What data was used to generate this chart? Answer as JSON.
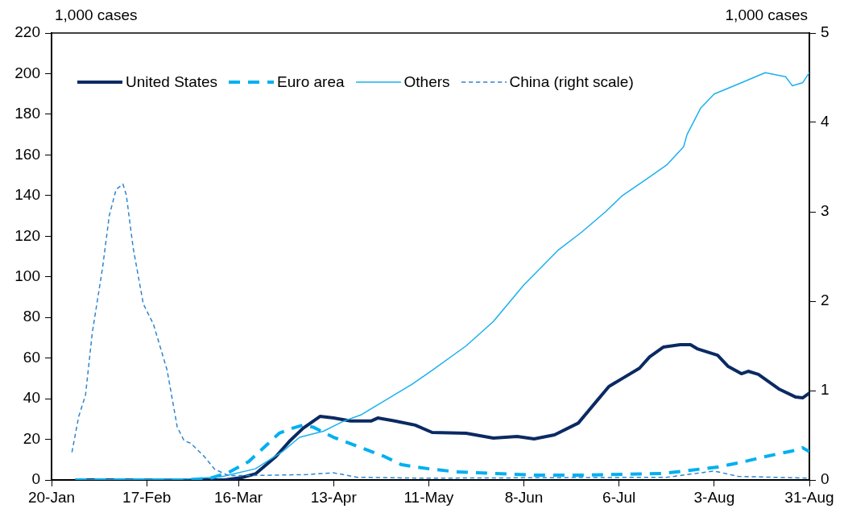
{
  "chart_data": {
    "type": "line",
    "ylabel": "1,000 cases",
    "y2label": "1,000 cases",
    "xlim": [
      "--01-20",
      "--08-31"
    ],
    "xticks": [
      {
        "value": "--01-20",
        "label": "20-Jan"
      },
      {
        "value": "--02-17",
        "label": "17-Feb"
      },
      {
        "value": "--03-16",
        "label": "16-Mar"
      },
      {
        "value": "--04-13",
        "label": "13-Apr"
      },
      {
        "value": "--05-11",
        "label": "11-May"
      },
      {
        "value": "--06-08",
        "label": "8-Jun"
      },
      {
        "value": "--07-06",
        "label": "6-Jul"
      },
      {
        "value": "--08-03",
        "label": "3-Aug"
      },
      {
        "value": "--08-31",
        "label": "31-Aug"
      }
    ],
    "ylim": [
      0,
      220
    ],
    "yticks": [
      0,
      20,
      40,
      60,
      80,
      100,
      120,
      140,
      160,
      180,
      200,
      220
    ],
    "y2lim": [
      0,
      5
    ],
    "y2ticks": [
      0,
      1,
      2,
      3,
      4,
      5
    ],
    "legend": "top left",
    "marker": "none",
    "series": [
      {
        "name": "United States",
        "color": "#0b2a63",
        "line_style": "solid",
        "x": [
          "--01-27",
          "--03-12",
          "--03-17",
          "--03-21",
          "--03-27",
          "--03-31",
          "--04-04",
          "--04-09",
          "--04-13",
          "--04-18",
          "--04-24",
          "--04-26",
          "--05-01",
          "--05-07",
          "--05-12",
          "--05-22",
          "--05-30",
          "--06-06",
          "--06-11",
          "--06-17",
          "--06-24",
          "--06-29",
          "--07-03",
          "--07-07",
          "--07-12",
          "--07-15",
          "--07-19",
          "--07-24",
          "--07-27",
          "--07-29",
          "--08-04",
          "--08-07",
          "--08-11",
          "--08-13",
          "--08-16",
          "--08-22",
          "--08-27",
          "--08-29",
          "--08-31"
        ],
        "values": [
          0,
          0,
          1.2,
          3,
          11.5,
          19,
          25.4,
          31.3,
          30.5,
          29,
          29,
          30.5,
          29,
          27,
          23.4,
          23,
          20.6,
          21.4,
          20.2,
          22.2,
          28,
          38,
          46,
          50,
          55,
          60.6,
          65.4,
          66.6,
          66.6,
          64.6,
          61.4,
          56,
          52.3,
          53.5,
          52,
          44.8,
          40.8,
          40.4,
          42.8
        ]
      },
      {
        "name": "Euro area",
        "color": "#00b0f0",
        "line_style": "dashed",
        "x": [
          "--01-27",
          "--03-01",
          "--03-08",
          "--03-13",
          "--03-19",
          "--03-28",
          "--04-01",
          "--04-04",
          "--04-07",
          "--04-13",
          "--04-20",
          "--04-28",
          "--05-03",
          "--05-11",
          "--05-19",
          "--05-30",
          "--06-11",
          "--06-25",
          "--07-19",
          "--07-27",
          "--08-04",
          "--08-11",
          "--08-18",
          "--08-26",
          "--08-29",
          "--08-31"
        ],
        "values": [
          0,
          0,
          1,
          3.6,
          9,
          23,
          25.5,
          27,
          26,
          21,
          16.6,
          11.5,
          7.5,
          5.5,
          4,
          3.2,
          2.4,
          2.4,
          3.2,
          4.8,
          6.3,
          8.7,
          11.5,
          14.3,
          15.9,
          14
        ]
      },
      {
        "name": "Others",
        "color": "#1ab0ee",
        "line_style": "solid",
        "x": [
          "--01-27",
          "--03-01",
          "--03-11",
          "--03-21",
          "--03-29",
          "--04-03",
          "--04-10",
          "--04-16",
          "--04-21",
          "--04-28",
          "--05-06",
          "--05-12",
          "--05-22",
          "--05-30",
          "--06-08",
          "--06-18",
          "--06-25",
          "--07-02",
          "--07-07",
          "--07-14",
          "--07-20",
          "--07-25",
          "--07-26",
          "--07-30",
          "--08-03",
          "--08-11",
          "--08-18",
          "--08-24",
          "--08-26",
          "--08-29",
          "--08-31"
        ],
        "values": [
          0,
          0.5,
          1.6,
          5.5,
          14,
          21,
          24,
          29,
          32,
          39,
          47,
          54,
          66,
          78,
          96,
          113,
          122,
          132,
          140,
          148,
          155,
          164,
          170,
          183,
          190,
          195.5,
          200.5,
          198.5,
          194,
          195.5,
          200.5
        ]
      },
      {
        "name": "China (right scale)",
        "color": "#2e86d0",
        "line_style": "dashed",
        "axis": "y2",
        "x": [
          "--01-26",
          "--01-28",
          "--01-30",
          "--02-01",
          "--02-04",
          "--02-06",
          "--02-08",
          "--02-10",
          "--02-11",
          "--02-13",
          "--02-16",
          "--02-19",
          "--02-23",
          "--02-26",
          "--02-28",
          "--03-02",
          "--03-06",
          "--03-09",
          "--03-13",
          "--03-20",
          "--04-05",
          "--04-13",
          "--04-20",
          "--05-10",
          "--07-20",
          "--08-03",
          "--08-10",
          "--08-31"
        ],
        "values": [
          0.31,
          0.71,
          0.95,
          1.65,
          2.37,
          2.96,
          3.25,
          3.31,
          3.19,
          2.6,
          1.97,
          1.74,
          1.23,
          0.59,
          0.44,
          0.41,
          0.26,
          0.12,
          0.05,
          0.05,
          0.06,
          0.08,
          0.03,
          0.02,
          0.03,
          0.1,
          0.04,
          0.02
        ]
      }
    ]
  }
}
